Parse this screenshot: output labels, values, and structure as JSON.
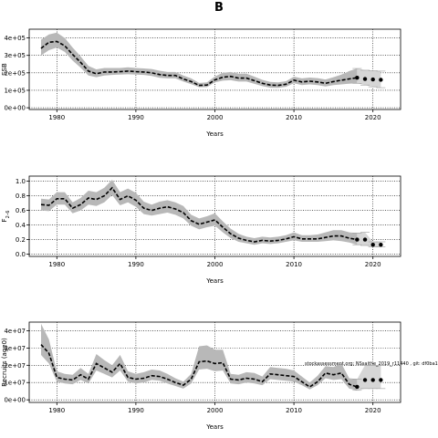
{
  "figure_title": "B",
  "chart_data": [
    {
      "type": "line",
      "panel": "SSB",
      "xlabel": "Years",
      "ylabel": "SSB",
      "xlim": [
        1976.5,
        2023.5
      ],
      "ylim": [
        -10000,
        450000
      ],
      "x_ticks": [
        1980,
        1990,
        2000,
        2010,
        2020
      ],
      "y_ticks": [
        0,
        100000,
        200000,
        300000,
        400000
      ],
      "y_tick_labels": [
        "0e+00",
        "1e+05",
        "2e+05",
        "3e+05",
        "4e+05"
      ],
      "grid": "dotted",
      "series": [
        {
          "kind": "estimate",
          "x": [
            1978,
            1979,
            1980,
            1981,
            1982,
            1983,
            1984,
            1985,
            1986,
            1987,
            1988,
            1989,
            1990,
            1991,
            1992,
            1993,
            1994,
            1995,
            1996,
            1997,
            1998,
            1999,
            2000,
            2001,
            2002,
            2003,
            2004,
            2005,
            2006,
            2007,
            2008,
            2009,
            2010,
            2011,
            2012,
            2013,
            2014,
            2015,
            2016,
            2017,
            2018
          ],
          "y": [
            340000,
            375000,
            380000,
            355000,
            305000,
            260000,
            210000,
            195000,
            205000,
            205000,
            207000,
            210000,
            207000,
            205000,
            200000,
            190000,
            185000,
            185000,
            165000,
            150000,
            128000,
            130000,
            160000,
            175000,
            180000,
            170000,
            170000,
            155000,
            140000,
            130000,
            128000,
            135000,
            158000,
            148000,
            152000,
            148000,
            140000,
            150000,
            158000,
            165000,
            172000
          ],
          "lower": [
            300000,
            330000,
            345000,
            320000,
            270000,
            230000,
            185000,
            175000,
            185000,
            188000,
            190000,
            192000,
            190000,
            188000,
            182000,
            172000,
            168000,
            168000,
            150000,
            135000,
            118000,
            118000,
            145000,
            155000,
            158000,
            150000,
            150000,
            137000,
            124000,
            115000,
            114000,
            120000,
            140000,
            130000,
            134000,
            130000,
            122000,
            130000,
            134000,
            138000,
            140000
          ],
          "upper": [
            390000,
            420000,
            430000,
            400000,
            345000,
            295000,
            240000,
            220000,
            228000,
            228000,
            228000,
            232000,
            228000,
            225000,
            222000,
            212000,
            205000,
            205000,
            185000,
            168000,
            142000,
            145000,
            180000,
            200000,
            205000,
            195000,
            195000,
            178000,
            160000,
            148000,
            145000,
            152000,
            178000,
            168000,
            173000,
            170000,
            162000,
            175000,
            190000,
            210000,
            225000
          ]
        },
        {
          "kind": "forecast",
          "x": [
            2018,
            2019,
            2020,
            2021
          ],
          "y": [
            172000,
            165000,
            162000,
            160000
          ],
          "lower": [
            140000,
            130000,
            120000,
            115000
          ],
          "upper": [
            225000,
            215000,
            212000,
            210000
          ]
        }
      ]
    },
    {
      "type": "line",
      "panel": "F2-6",
      "xlabel": "Years",
      "ylabel": "F",
      "ylabel_sub": "2–6",
      "xlim": [
        1976.5,
        2023.5
      ],
      "ylim": [
        -0.03,
        1.07
      ],
      "x_ticks": [
        1980,
        1990,
        2000,
        2010,
        2020
      ],
      "y_ticks": [
        0,
        0.2,
        0.4,
        0.6,
        0.8,
        1.0
      ],
      "y_tick_labels": [
        "0.0",
        "0.2",
        "0.4",
        "0.6",
        "0.8",
        "1.0"
      ],
      "grid": "dotted",
      "series": [
        {
          "kind": "estimate",
          "x": [
            1978,
            1979,
            1980,
            1981,
            1982,
            1983,
            1984,
            1985,
            1986,
            1987,
            1988,
            1989,
            1990,
            1991,
            1992,
            1993,
            1994,
            1995,
            1996,
            1997,
            1998,
            1999,
            2000,
            2001,
            2002,
            2003,
            2004,
            2005,
            2006,
            2007,
            2008,
            2009,
            2010,
            2011,
            2012,
            2013,
            2014,
            2015,
            2016,
            2017,
            2018
          ],
          "y": [
            0.68,
            0.67,
            0.76,
            0.76,
            0.63,
            0.68,
            0.77,
            0.75,
            0.8,
            0.91,
            0.75,
            0.8,
            0.74,
            0.63,
            0.6,
            0.63,
            0.65,
            0.62,
            0.57,
            0.46,
            0.41,
            0.44,
            0.47,
            0.37,
            0.28,
            0.22,
            0.19,
            0.17,
            0.19,
            0.18,
            0.19,
            0.21,
            0.24,
            0.21,
            0.21,
            0.21,
            0.23,
            0.25,
            0.25,
            0.22,
            0.2
          ],
          "lower": [
            0.6,
            0.59,
            0.68,
            0.68,
            0.56,
            0.6,
            0.68,
            0.66,
            0.71,
            0.81,
            0.67,
            0.71,
            0.65,
            0.55,
            0.53,
            0.55,
            0.57,
            0.54,
            0.49,
            0.39,
            0.34,
            0.37,
            0.39,
            0.3,
            0.22,
            0.17,
            0.15,
            0.13,
            0.15,
            0.14,
            0.15,
            0.17,
            0.19,
            0.17,
            0.17,
            0.17,
            0.18,
            0.19,
            0.18,
            0.16,
            0.13
          ],
          "upper": [
            0.76,
            0.75,
            0.85,
            0.85,
            0.71,
            0.77,
            0.87,
            0.85,
            0.91,
            1.02,
            0.85,
            0.9,
            0.84,
            0.72,
            0.68,
            0.72,
            0.74,
            0.71,
            0.66,
            0.54,
            0.49,
            0.52,
            0.56,
            0.45,
            0.35,
            0.28,
            0.24,
            0.22,
            0.24,
            0.23,
            0.24,
            0.26,
            0.3,
            0.26,
            0.26,
            0.27,
            0.3,
            0.33,
            0.33,
            0.3,
            0.29
          ]
        },
        {
          "kind": "forecast",
          "x": [
            2018,
            2019,
            2020,
            2021
          ],
          "y": [
            0.2,
            0.2,
            0.13,
            0.13
          ],
          "lower": [
            0.13,
            0.12,
            0.1,
            0.1
          ],
          "upper": [
            0.29,
            0.3,
            0.17,
            0.17
          ]
        }
      ]
    },
    {
      "type": "line",
      "panel": "Recruits",
      "xlabel": "Years",
      "ylabel": "Recruits (age0)",
      "xlim": [
        1976.5,
        2023.5
      ],
      "ylim": [
        -1500000,
        45000000
      ],
      "x_ticks": [
        1980,
        1990,
        2000,
        2010,
        2020
      ],
      "y_ticks": [
        0,
        10000000,
        20000000,
        30000000,
        40000000
      ],
      "y_tick_labels": [
        "0e+00",
        "1e+07",
        "2e+07",
        "3e+07",
        "4e+07"
      ],
      "grid": "dotted",
      "annotation": "stockassessment.org: NSsaithe_2019_r11440 , git: df0ba10d70",
      "series": [
        {
          "kind": "estimate",
          "x": [
            1978,
            1979,
            1980,
            1981,
            1982,
            1983,
            1984,
            1985,
            1986,
            1987,
            1988,
            1989,
            1990,
            1991,
            1992,
            1993,
            1994,
            1995,
            1996,
            1997,
            1998,
            1999,
            2000,
            2001,
            2002,
            2003,
            2004,
            2005,
            2006,
            2007,
            2008,
            2009,
            2010,
            2011,
            2012,
            2013,
            2014,
            2015,
            2016,
            2017,
            2018
          ],
          "y": [
            32000000,
            27000000,
            13000000,
            12000000,
            11500000,
            14500000,
            12000000,
            21000000,
            18500000,
            16000000,
            21000000,
            13000000,
            12000000,
            12500000,
            14000000,
            13500000,
            12000000,
            10000000,
            8500000,
            12000000,
            22000000,
            22500000,
            21000000,
            21500000,
            12000000,
            11500000,
            12500000,
            12000000,
            10500000,
            15000000,
            14500000,
            14000000,
            13500000,
            10500000,
            7500000,
            10500000,
            15500000,
            14500000,
            15500000,
            9000000,
            7500000
          ],
          "lower": [
            26000000,
            21000000,
            10500000,
            9500000,
            9000000,
            11500000,
            9500000,
            17000000,
            15000000,
            13000000,
            17000000,
            10500000,
            9500000,
            10000000,
            11500000,
            11000000,
            9500000,
            8000000,
            6500000,
            9500000,
            17500000,
            18000000,
            16500000,
            17000000,
            9500000,
            9000000,
            10000000,
            9500000,
            8500000,
            12000000,
            11500000,
            11000000,
            10500000,
            8500000,
            6000000,
            8500000,
            12500000,
            11500000,
            12000000,
            6500000,
            5500000
          ],
          "upper": [
            44000000,
            35000000,
            16500000,
            15000000,
            14500000,
            18500000,
            15000000,
            26500000,
            23000000,
            20000000,
            26000000,
            16500000,
            15000000,
            16000000,
            17500000,
            17000000,
            15000000,
            12500000,
            10500000,
            15000000,
            31000000,
            31500000,
            29000000,
            29000000,
            15000000,
            14500000,
            16000000,
            15500000,
            13500000,
            19000000,
            18500000,
            18000000,
            17000000,
            13500000,
            10000000,
            14000000,
            19500000,
            19000000,
            21000000,
            12500000,
            12000000
          ]
        },
        {
          "kind": "forecast",
          "x": [
            2018,
            2019,
            2020,
            2021
          ],
          "y": [
            7500000,
            11500000,
            11500000,
            11500000
          ],
          "lower": [
            5500000,
            6500000,
            6500000,
            6500000
          ],
          "upper": [
            12000000,
            20000000,
            20000000,
            20000000
          ]
        }
      ]
    }
  ]
}
